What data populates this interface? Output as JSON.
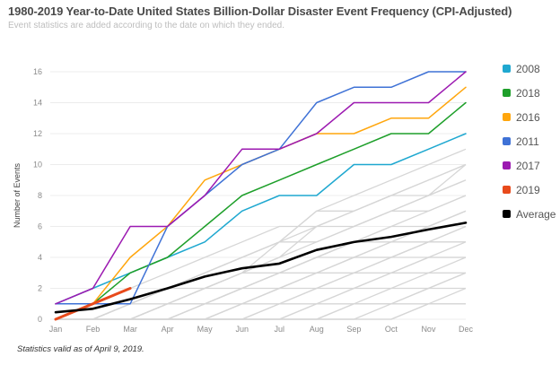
{
  "chart_data": {
    "type": "line",
    "title": "1980-2019 Year-to-Date United States Billion-Dollar Disaster Event Frequency (CPI-Adjusted)",
    "subtitle": "Event statistics are added according to the date on which they ended.",
    "footnote": "Statistics valid as of April 9, 2019.",
    "xlabel": "",
    "ylabel": "Number of Events",
    "categories": [
      "Jan",
      "Feb",
      "Mar",
      "Apr",
      "May",
      "Jun",
      "Jul",
      "Aug",
      "Sep",
      "Oct",
      "Nov",
      "Dec"
    ],
    "ylim": [
      0,
      16
    ],
    "yticks": [
      0,
      2,
      4,
      6,
      8,
      10,
      12,
      14,
      16
    ],
    "grid": true,
    "legend_position": "right",
    "series": [
      {
        "name": "2008",
        "color": "#1fa8d0",
        "highlight": true,
        "values": [
          1,
          2,
          3,
          4,
          5,
          7,
          8,
          8,
          10,
          10,
          11,
          12
        ]
      },
      {
        "name": "2018",
        "color": "#1e9f2a",
        "highlight": true,
        "values": [
          1,
          1,
          3,
          4,
          6,
          8,
          9,
          10,
          11,
          12,
          12,
          14
        ]
      },
      {
        "name": "2016",
        "color": "#ffa60d",
        "highlight": true,
        "values": [
          0,
          1,
          4,
          6,
          9,
          10,
          11,
          12,
          12,
          13,
          13,
          15
        ]
      },
      {
        "name": "2011",
        "color": "#3f72d6",
        "highlight": true,
        "values": [
          1,
          1,
          1,
          6,
          8,
          10,
          11,
          14,
          15,
          15,
          16,
          16
        ]
      },
      {
        "name": "2017",
        "color": "#9c1ab1",
        "highlight": true,
        "values": [
          1,
          2,
          6,
          6,
          8,
          11,
          11,
          12,
          14,
          14,
          14,
          16
        ]
      },
      {
        "name": "2019",
        "color": "#e84a1b",
        "highlight": true,
        "values": [
          0,
          1,
          2
        ]
      },
      {
        "name": "Average",
        "color": "#000000",
        "highlight": true,
        "values": [
          0.45,
          0.68,
          1.3,
          2.0,
          2.76,
          3.29,
          3.6,
          4.48,
          4.99,
          5.33,
          5.8,
          6.24
        ]
      }
    ],
    "other_years_color": "#d6d6d6",
    "other_years": [
      [
        0,
        0,
        1,
        2,
        3,
        4,
        5,
        7,
        8,
        9,
        10,
        11
      ],
      [
        0,
        1,
        1,
        2,
        3,
        4,
        5,
        6,
        7,
        8,
        9,
        10
      ],
      [
        0,
        0,
        1,
        1,
        2,
        3,
        5,
        7,
        7,
        8,
        8,
        10
      ],
      [
        0,
        0,
        0,
        1,
        2,
        3,
        4,
        6,
        6,
        7,
        8,
        9
      ],
      [
        0,
        0,
        1,
        2,
        2,
        3,
        4,
        5,
        6,
        7,
        7,
        8
      ],
      [
        0,
        0,
        0,
        1,
        2,
        3,
        3,
        4,
        5,
        6,
        6,
        7
      ],
      [
        0,
        0,
        0,
        1,
        1,
        2,
        3,
        4,
        5,
        5,
        6,
        7
      ],
      [
        0,
        0,
        0,
        0,
        1,
        2,
        3,
        3,
        4,
        5,
        5,
        6
      ],
      [
        0,
        0,
        0,
        1,
        1,
        2,
        2,
        3,
        4,
        4,
        5,
        5
      ],
      [
        0,
        0,
        0,
        0,
        1,
        1,
        2,
        3,
        3,
        4,
        4,
        5
      ],
      [
        0,
        0,
        0,
        0,
        0,
        1,
        2,
        2,
        3,
        3,
        4,
        4
      ],
      [
        0,
        0,
        0,
        0,
        0,
        1,
        1,
        2,
        2,
        3,
        3,
        3
      ],
      [
        0,
        0,
        0,
        0,
        0,
        0,
        1,
        1,
        2,
        2,
        2,
        3
      ],
      [
        0,
        0,
        0,
        0,
        0,
        0,
        0,
        1,
        1,
        1,
        2,
        2
      ],
      [
        0,
        0,
        0,
        0,
        0,
        0,
        0,
        0,
        1,
        1,
        1,
        1
      ],
      [
        0,
        0,
        0,
        0,
        0,
        0,
        0,
        0,
        0,
        0,
        1,
        1
      ],
      [
        0,
        1,
        2,
        3,
        4,
        5,
        6,
        6,
        7,
        8,
        9,
        10
      ],
      [
        0,
        0,
        1,
        2,
        3,
        4,
        5,
        5,
        6,
        7,
        8,
        9
      ],
      [
        0,
        0,
        0,
        1,
        2,
        2,
        3,
        4,
        5,
        6,
        7,
        8
      ],
      [
        0,
        0,
        0,
        0,
        1,
        2,
        3,
        4,
        4,
        5,
        6,
        7
      ],
      [
        0,
        0,
        0,
        0,
        0,
        1,
        2,
        3,
        4,
        4,
        5,
        6
      ],
      [
        0,
        0,
        0,
        0,
        0,
        0,
        1,
        2,
        3,
        4,
        5,
        5
      ],
      [
        0,
        0,
        0,
        0,
        0,
        0,
        0,
        1,
        2,
        3,
        4,
        4
      ],
      [
        0,
        0,
        0,
        0,
        0,
        0,
        0,
        0,
        1,
        2,
        3,
        4
      ],
      [
        0,
        0,
        0,
        0,
        0,
        0,
        0,
        0,
        0,
        1,
        2,
        3
      ],
      [
        0,
        0,
        0,
        0,
        0,
        0,
        0,
        0,
        0,
        0,
        1,
        2
      ]
    ]
  }
}
